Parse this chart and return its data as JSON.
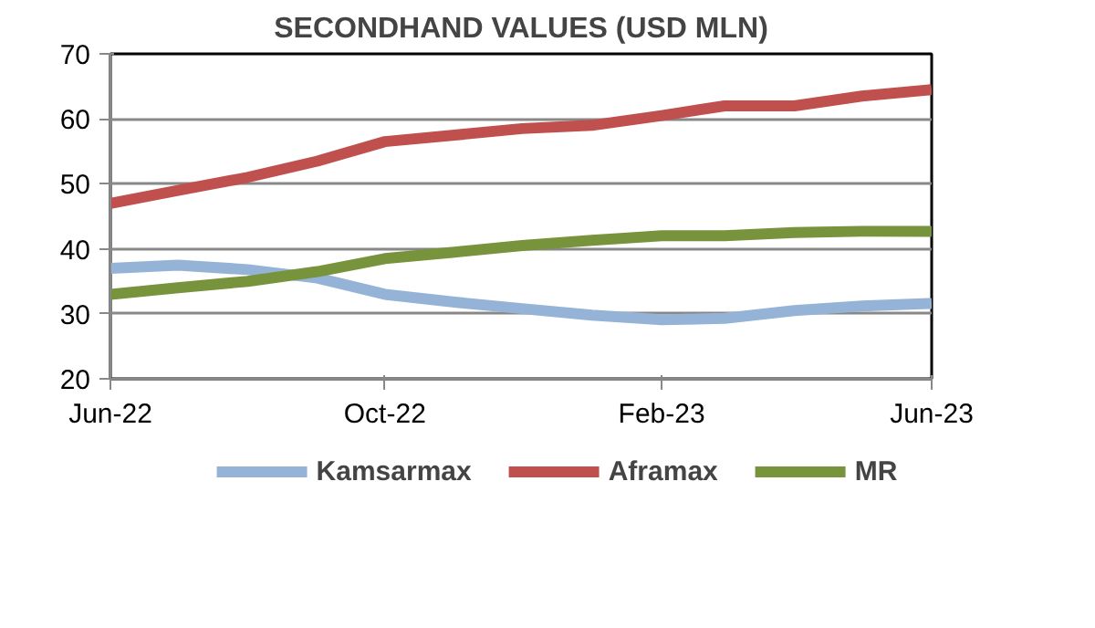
{
  "chart_data": {
    "type": "line",
    "title": "SECONDHAND VALUES (USD MLN)",
    "x": [
      "2022-06",
      "2022-07",
      "2022-08",
      "2022-09",
      "2022-10",
      "2022-11",
      "2022-12",
      "2023-01",
      "2023-02",
      "2023-03",
      "2023-04",
      "2023-05",
      "2023-06"
    ],
    "series": [
      {
        "name": "Kamsarmax",
        "color": "#95b3d7",
        "values": [
          37,
          37.5,
          36.8,
          35.5,
          33,
          31.8,
          30.8,
          29.8,
          29.1,
          29.3,
          30.5,
          31.2,
          31.6
        ]
      },
      {
        "name": "Aframax",
        "color": "#c0504d",
        "values": [
          47,
          49,
          51,
          53.5,
          56.5,
          57.5,
          58.5,
          59,
          60.5,
          62,
          62,
          63.5,
          64.5
        ]
      },
      {
        "name": "MR",
        "color": "#77933c",
        "values": [
          33,
          34,
          35,
          36.5,
          38.5,
          39.5,
          40.5,
          41.3,
          42,
          42,
          42.5,
          42.7,
          42.7
        ]
      }
    ],
    "xlim": [
      "2022-06",
      "2023-06"
    ],
    "xticks": [
      {
        "value": "2022-06",
        "label": "Jun-22"
      },
      {
        "value": "2022-10",
        "label": "Oct-22"
      },
      {
        "value": "2023-02",
        "label": "Feb-23"
      },
      {
        "value": "2023-06",
        "label": "Jun-23"
      }
    ],
    "ylim": [
      20,
      70
    ],
    "yticks": [
      20,
      30,
      40,
      50,
      60,
      70
    ],
    "grid": "y",
    "legend": "bottom",
    "marker": "none",
    "line_style": "solid"
  }
}
